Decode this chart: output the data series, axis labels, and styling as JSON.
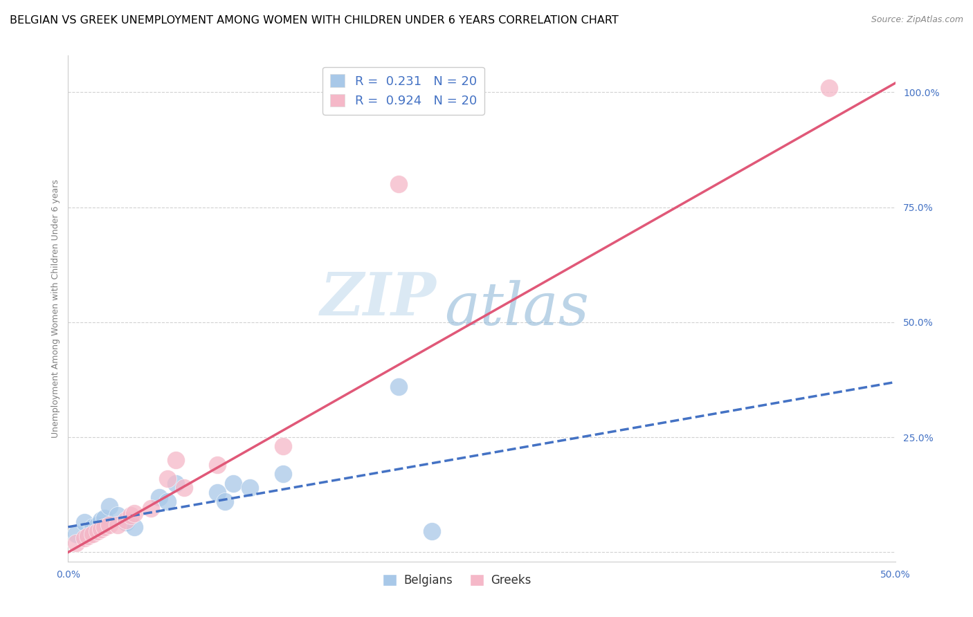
{
  "title": "BELGIAN VS GREEK UNEMPLOYMENT AMONG WOMEN WITH CHILDREN UNDER 6 YEARS CORRELATION CHART",
  "source": "Source: ZipAtlas.com",
  "ylabel": "Unemployment Among Women with Children Under 6 years",
  "xlim": [
    0.0,
    0.5
  ],
  "ylim": [
    -0.02,
    1.08
  ],
  "yticks": [
    0.0,
    0.25,
    0.5,
    0.75,
    1.0
  ],
  "ytick_labels": [
    "",
    "25.0%",
    "50.0%",
    "75.0%",
    "100.0%"
  ],
  "xticks": [
    0.0,
    0.1,
    0.2,
    0.3,
    0.4,
    0.5
  ],
  "xtick_labels": [
    "0.0%",
    "",
    "",
    "",
    "",
    "50.0%"
  ],
  "belgian_color": "#a8c8e8",
  "greek_color": "#f5b8c8",
  "belgian_line_color": "#4472c4",
  "greek_line_color": "#e05878",
  "R_belgian": 0.231,
  "N_belgian": 20,
  "R_greek": 0.924,
  "N_greek": 20,
  "belgian_x": [
    0.005,
    0.01,
    0.015,
    0.018,
    0.02,
    0.022,
    0.025,
    0.03,
    0.035,
    0.04,
    0.055,
    0.06,
    0.065,
    0.09,
    0.095,
    0.1,
    0.11,
    0.13,
    0.2,
    0.22
  ],
  "belgian_y": [
    0.04,
    0.065,
    0.055,
    0.06,
    0.07,
    0.075,
    0.1,
    0.08,
    0.065,
    0.055,
    0.12,
    0.11,
    0.15,
    0.13,
    0.11,
    0.15,
    0.14,
    0.17,
    0.36,
    0.045
  ],
  "greek_x": [
    0.005,
    0.01,
    0.012,
    0.015,
    0.018,
    0.02,
    0.022,
    0.025,
    0.03,
    0.035,
    0.038,
    0.04,
    0.05,
    0.06,
    0.065,
    0.07,
    0.09,
    0.13,
    0.2,
    0.46
  ],
  "greek_y": [
    0.02,
    0.03,
    0.035,
    0.04,
    0.045,
    0.05,
    0.055,
    0.06,
    0.06,
    0.07,
    0.08,
    0.085,
    0.095,
    0.16,
    0.2,
    0.14,
    0.19,
    0.23,
    0.8,
    1.01
  ],
  "belgian_line_x": [
    0.0,
    0.5
  ],
  "belgian_line_y": [
    0.055,
    0.37
  ],
  "greek_line_x": [
    0.0,
    0.5
  ],
  "greek_line_y": [
    0.0,
    1.02
  ],
  "watermark_zip": "ZIP",
  "watermark_atlas": "atlas",
  "title_fontsize": 11.5,
  "source_fontsize": 9,
  "axis_label_fontsize": 9,
  "legend_fontsize": 13,
  "tick_fontsize": 10
}
